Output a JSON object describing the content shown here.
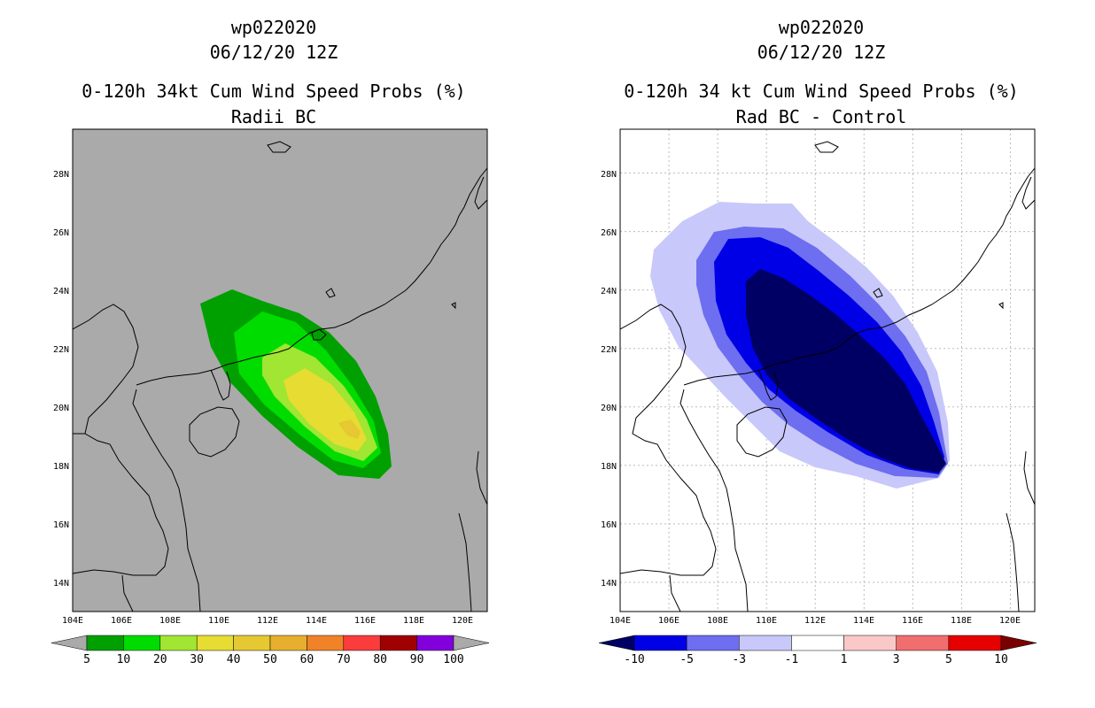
{
  "chart_data": [
    {
      "type": "heatmap",
      "title_line1": "wp022020",
      "title_line2": "06/12/20 12Z",
      "title_line3": "0-120h 34kt Cum Wind Speed Probs (%)",
      "title_line4": "Radii BC",
      "background": "#aaaaaa",
      "lon_range": [
        104,
        121
      ],
      "lat_range": [
        13,
        29.5
      ],
      "x_ticks": [
        "104E",
        "106E",
        "108E",
        "110E",
        "112E",
        "114E",
        "116E",
        "118E",
        "120E"
      ],
      "y_ticks": [
        "14N",
        "16N",
        "18N",
        "20N",
        "22N",
        "24N",
        "26N",
        "28N"
      ],
      "colorbar": {
        "labels": [
          "5",
          "10",
          "20",
          "30",
          "40",
          "50",
          "60",
          "70",
          "80",
          "90",
          "100"
        ],
        "colors": [
          "#00a000",
          "#00dc00",
          "#a0e632",
          "#e6dc32",
          "#e6c832",
          "#e6af2d",
          "#f08228",
          "#fa3c3c",
          "#a00000",
          "#8200dc"
        ],
        "end_colors": [
          "#aaaaaa",
          "#aaaaaa"
        ]
      },
      "contour_levels": [
        {
          "level": 5,
          "color": "#00a000"
        },
        {
          "level": 10,
          "color": "#00dc00"
        },
        {
          "level": 20,
          "color": "#a0e632"
        },
        {
          "level": 30,
          "color": "#e6dc32"
        },
        {
          "level": 40,
          "color": "#e6c832"
        }
      ],
      "max_center": {
        "lon": 115.3,
        "lat": 19.3
      }
    },
    {
      "type": "heatmap",
      "title_line1": "wp022020",
      "title_line2": "06/12/20 12Z",
      "title_line3": "0-120h 34 kt Cum Wind Speed Probs (%)",
      "title_line4": "Rad BC - Control",
      "background": "#ffffff",
      "lon_range": [
        104,
        121
      ],
      "lat_range": [
        13,
        29.5
      ],
      "x_ticks": [
        "104E",
        "106E",
        "108E",
        "110E",
        "112E",
        "114E",
        "116E",
        "118E",
        "120E"
      ],
      "y_ticks": [
        "14N",
        "16N",
        "18N",
        "20N",
        "22N",
        "24N",
        "26N",
        "28N"
      ],
      "grid": true,
      "colorbar": {
        "labels": [
          "-10",
          "-5",
          "-3",
          "-1",
          "1",
          "3",
          "5",
          "10"
        ],
        "colors": [
          "#0000e6",
          "#6e6ef0",
          "#c8c8fa",
          "#ffffff",
          "#fac8c8",
          "#f06e6e",
          "#e60000"
        ],
        "end_colors": [
          "#000064",
          "#780000"
        ]
      },
      "contour_levels": [
        {
          "level": -1,
          "color": "#c8c8fa"
        },
        {
          "level": -3,
          "color": "#6e6ef0"
        },
        {
          "level": -5,
          "color": "#0000e6"
        },
        {
          "level": -10,
          "color": "#000064"
        }
      ],
      "max_center": {
        "lon": 113.5,
        "lat": 21.0
      }
    }
  ]
}
